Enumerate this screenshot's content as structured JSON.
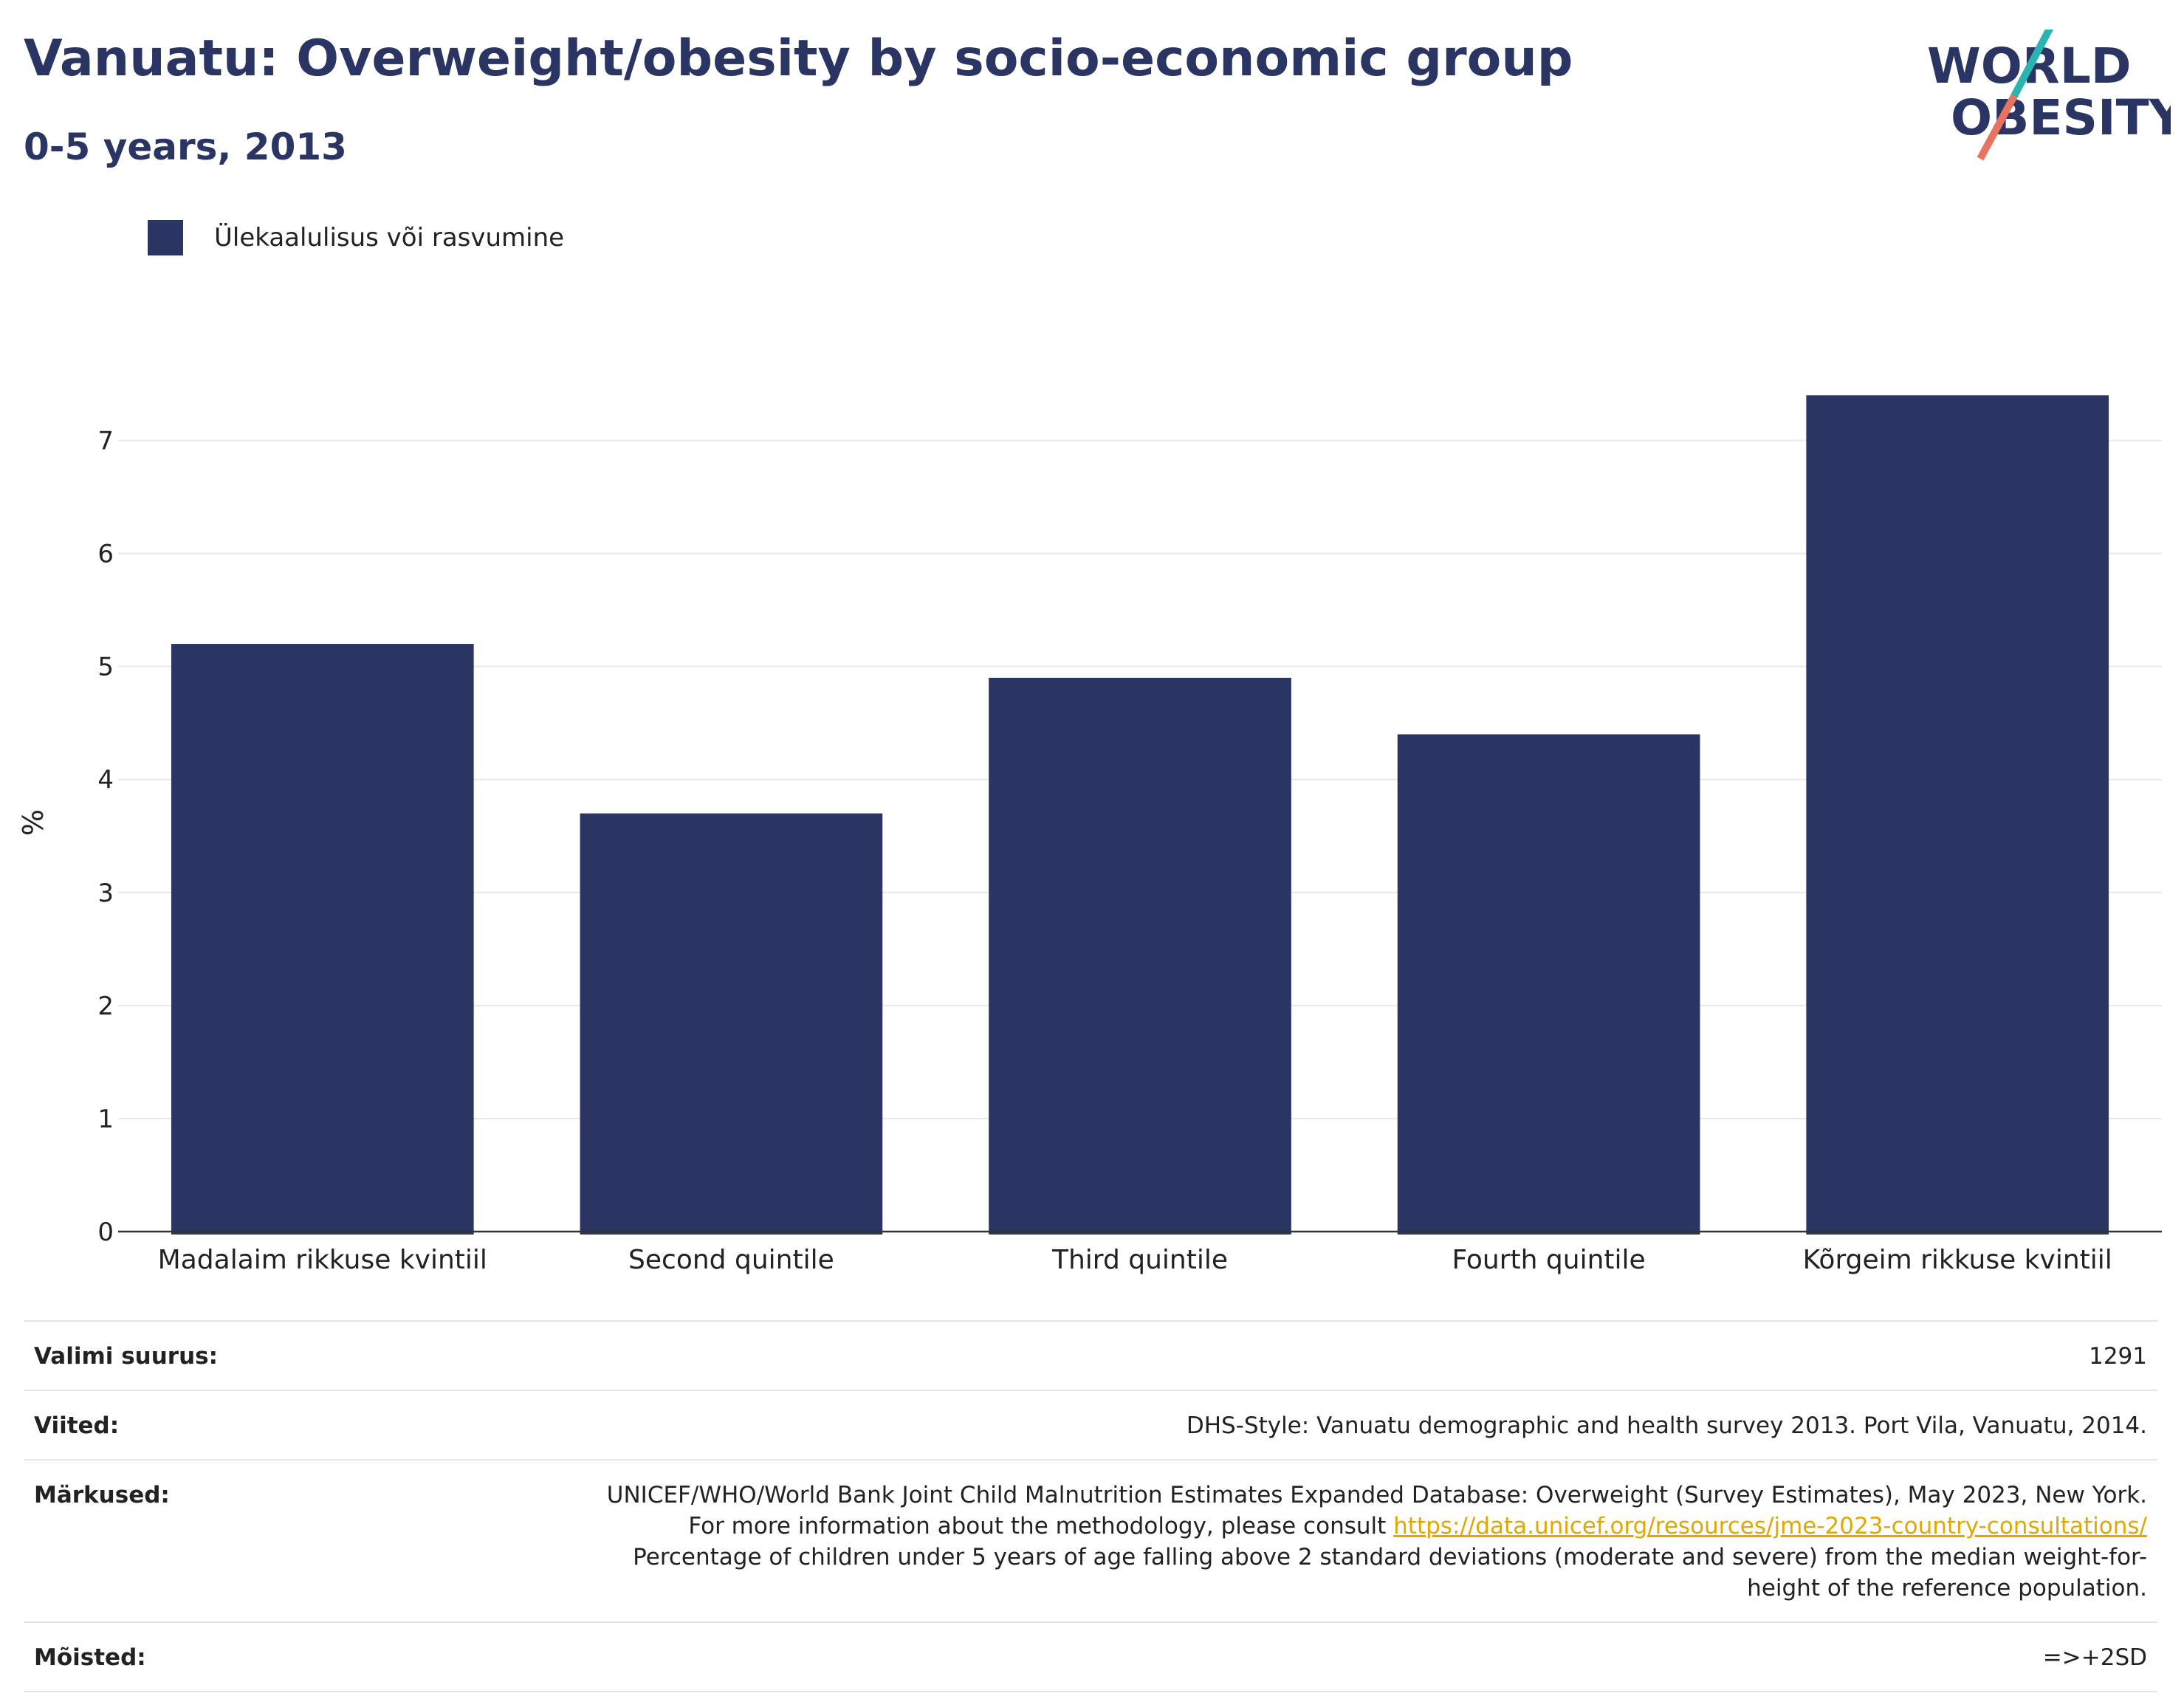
{
  "header": {
    "title": "Vanuatu: Overweight/obesity by socio-economic group",
    "subtitle": "0-5 years, 2013"
  },
  "logo": {
    "line1": "WORLD",
    "line2": "OBESITY",
    "text_color": "#2a3563",
    "accent_teal": "#2bb3b1",
    "accent_coral": "#e8735f"
  },
  "legend": {
    "label": "Ülekaalulisus või rasvumine",
    "color": "#2a3563"
  },
  "chart_data": {
    "type": "bar",
    "title": "Vanuatu: Overweight/obesity by socio-economic group",
    "subtitle": "0-5 years, 2013",
    "ylabel": "%",
    "xlabel": "",
    "categories": [
      "Madalaim rikkuse kvintiil",
      "Second quintile",
      "Third quintile",
      "Fourth quintile",
      "Kõrgeim rikkuse kvintiil"
    ],
    "series": [
      {
        "name": "Ülekaalulisus või rasvumine",
        "values": [
          5.2,
          3.7,
          4.9,
          4.4,
          7.4
        ],
        "color": "#2a3563"
      }
    ],
    "ylim": [
      0,
      7.5
    ],
    "yticks": [
      0,
      1,
      2,
      3,
      4,
      5,
      6,
      7
    ],
    "grid": true,
    "legend_position": "top-left"
  },
  "meta": {
    "sample_size_label": "Valimi suurus:",
    "sample_size_value": "1291",
    "references_label": "Viited:",
    "references_value": "DHS-Style: Vanuatu demographic and health survey 2013. Port Vila, Vanuatu, 2014.",
    "notes_label": "Märkused:",
    "notes_text_1": "UNICEF/WHO/World Bank Joint Child Malnutrition Estimates Expanded Database: Overweight (Survey Estimates), May 2023, New York. For more information about the methodology, please consult",
    "notes_link": "https://data.unicef.org/resources/jme-2023-country-consultations/",
    "notes_text_2": "Percentage of children under 5 years of age falling above 2 standard deviations (moderate and severe) from the median weight-for-height of the reference population.",
    "definitions_label": "Mõisted:",
    "definitions_value": "=>+2SD"
  }
}
